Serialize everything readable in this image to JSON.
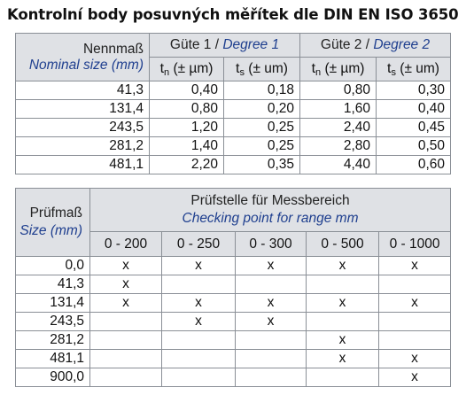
{
  "title": "Kontrolní body posuvných měřítek dle DIN EN ISO 3650",
  "table1": {
    "rowhead_de": "Nennmaß",
    "rowhead_en": "Nominal size (mm)",
    "groups": [
      {
        "de": "Güte 1",
        "sep": " / ",
        "en": "Degree 1"
      },
      {
        "de": "Güte 2",
        "sep": " / ",
        "en": "Degree 2"
      }
    ],
    "subheads": [
      {
        "sym": "t",
        "sub": "n",
        "unit": " (± µm)"
      },
      {
        "sym": "t",
        "sub": "s",
        "unit": " (± um)"
      },
      {
        "sym": "t",
        "sub": "n",
        "unit": " (± µm)"
      },
      {
        "sym": "t",
        "sub": "s",
        "unit": " (± um)"
      }
    ],
    "rows": [
      {
        "size": "41,3",
        "v": [
          "0,40",
          "0,18",
          "0,80",
          "0,30"
        ]
      },
      {
        "size": "131,4",
        "v": [
          "0,80",
          "0,20",
          "1,60",
          "0,40"
        ]
      },
      {
        "size": "243,5",
        "v": [
          "1,20",
          "0,25",
          "2,40",
          "0,45"
        ]
      },
      {
        "size": "281,2",
        "v": [
          "1,40",
          "0,25",
          "2,80",
          "0,50"
        ]
      },
      {
        "size": "481,1",
        "v": [
          "2,20",
          "0,35",
          "4,40",
          "0,60"
        ]
      }
    ]
  },
  "table2": {
    "rowhead_de": "Prüfmaß",
    "rowhead_en": "Size (mm)",
    "group_de": "Prüfstelle für Messbereich",
    "group_en": "Checking point for range mm",
    "ranges": [
      "0 - 200",
      "0 - 250",
      "0 - 300",
      "0 - 500",
      "0 - 1000"
    ],
    "rows": [
      {
        "size": "0,0",
        "m": [
          "x",
          "x",
          "x",
          "x",
          "x"
        ]
      },
      {
        "size": "41,3",
        "m": [
          "x",
          "",
          "",
          "",
          ""
        ]
      },
      {
        "size": "131,4",
        "m": [
          "x",
          "x",
          "x",
          "x",
          "x"
        ]
      },
      {
        "size": "243,5",
        "m": [
          "",
          "x",
          "x",
          "",
          ""
        ]
      },
      {
        "size": "281,2",
        "m": [
          "",
          "",
          "",
          "x",
          ""
        ]
      },
      {
        "size": "481,1",
        "m": [
          "",
          "",
          "",
          "x",
          "x"
        ]
      },
      {
        "size": "900,0",
        "m": [
          "",
          "",
          "",
          "",
          "x"
        ]
      }
    ]
  }
}
